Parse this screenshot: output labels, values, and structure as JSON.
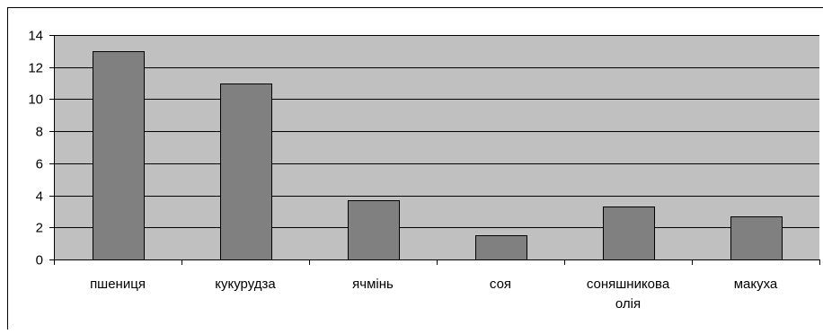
{
  "chart_data": {
    "type": "bar",
    "categories": [
      "пшениця",
      "кукурудза",
      "ячмінь",
      "соя",
      "соняшникова олія",
      "макуха"
    ],
    "category_lines": [
      [
        "пшениця"
      ],
      [
        "кукурудза"
      ],
      [
        "ячмінь"
      ],
      [
        "соя"
      ],
      [
        "соняшникова",
        "олія"
      ],
      [
        "макуха"
      ]
    ],
    "values": [
      13,
      11,
      3.7,
      1.5,
      3.3,
      2.7
    ],
    "yticks": [
      "0",
      "2",
      "4",
      "6",
      "8",
      "10",
      "12",
      "14"
    ],
    "ylim": [
      0,
      14
    ],
    "grid": true,
    "legend": "none",
    "colors": {
      "plot_area": "#c0c0c0",
      "bar_fill": "#808080",
      "bar_stroke": "#000000",
      "gridline": "#000000",
      "axis": "#000000",
      "frame": "#000000"
    }
  }
}
